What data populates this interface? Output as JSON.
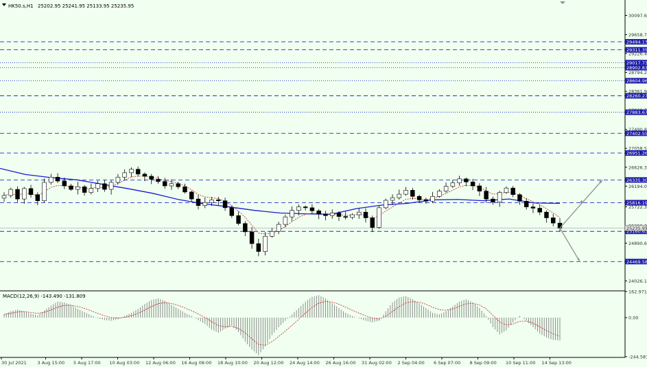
{
  "header": {
    "symbol": "HK50.s,H1",
    "ohlc": "25202.95 25241.95 25133.95 25235.95",
    "macd_label": "MACD(12,26,9) -143.490 -131.809"
  },
  "colors": {
    "background": "#f0fff0",
    "level_line": "#1e2fc8",
    "level_label_bg": "#1a1aa8",
    "ma_line": "#1a1ad2",
    "signal_line": "#c02020",
    "candle": "#000000",
    "arrow": "#909090",
    "grid": "#b8c8d0"
  },
  "chart_data": [
    {
      "type": "candlestick",
      "price_axis": {
        "ylim": [
          23800,
          30450
        ],
        "ticks": [
          30097.6,
          29658.7,
          29226.45,
          28794.2,
          28361.95,
          27929.7,
          27490.8,
          27058.55,
          26626.3,
          26194.05,
          25722.3,
          25290.05,
          24890.65,
          24458.4,
          24026.15
        ]
      },
      "x_tick_labels": [
        "30 Jul 2021",
        "3 Aug 15:00",
        "5 Aug 17:00",
        "10 Aug 03:00",
        "12 Aug 06:00",
        "16 Aug 08:00",
        "18 Aug 10:00",
        "20 Aug 12:00",
        "24 Aug 14:00",
        "26 Aug 16:00",
        "31 Aug 02:00",
        "2 Sep 04:00",
        "6 Sep 07:00",
        "8 Sep 09:00",
        "10 Sep 11:00",
        "14 Sep 13:00"
      ],
      "levels": [
        {
          "value": 29494.13,
          "style": "dashed"
        },
        {
          "value": 29311.35,
          "style": "dashed"
        },
        {
          "value": 29017.73,
          "style": "dotted"
        },
        {
          "value": 28902.83,
          "style": "dotted"
        },
        {
          "value": 28604.96,
          "style": "dotted"
        },
        {
          "value": 28260.27,
          "style": "dashed"
        },
        {
          "value": 27883.67,
          "style": "dotted"
        },
        {
          "value": 27402.55,
          "style": "dashed"
        },
        {
          "value": 26951.26,
          "style": "dashed"
        },
        {
          "value": 26335.3,
          "style": "dashed"
        },
        {
          "value": 25816.19,
          "style": "dashed"
        },
        {
          "value": 25160.63,
          "style": "dashed"
        },
        {
          "value": 24469.58,
          "style": "dashed"
        }
      ],
      "current_price": 25235.95,
      "close_series": [
        25980,
        26120,
        25900,
        26140,
        26000,
        25860,
        26280,
        26400,
        26310,
        26200,
        26120,
        26180,
        26050,
        26140,
        26250,
        26120,
        26280,
        26400,
        26500,
        26580,
        26470,
        26420,
        26350,
        26300,
        26200,
        26250,
        26180,
        26060,
        25900,
        25750,
        25820,
        25880,
        25860,
        25700,
        25520,
        25340,
        25150,
        24880,
        24700,
        25050,
        25160,
        25320,
        25490,
        25640,
        25720,
        25700,
        25630,
        25560,
        25520,
        25580,
        25500,
        25480,
        25540,
        25600,
        25470,
        25250,
        25700,
        25870,
        25930,
        26010,
        26100,
        25960,
        25880,
        25850,
        25960,
        26080,
        26190,
        26270,
        26360,
        26290,
        26200,
        26080,
        25900,
        25830,
        26050,
        26150,
        26000,
        25850,
        25720,
        25690,
        25600,
        25470,
        25350,
        25236
      ],
      "ma_series": [
        26600,
        26460,
        26390,
        26340,
        26240,
        26140,
        26030,
        25890,
        25790,
        25720,
        25640,
        25580,
        25560,
        25550,
        25680,
        25760,
        25800,
        25880,
        25890,
        25860,
        25900,
        25810,
        25800
      ]
    },
    {
      "type": "macd",
      "params": "12,26,9",
      "macd": -143.49,
      "signal": -131.809,
      "ylim": [
        -244.581,
        162.971
      ],
      "ticks": [
        162.971,
        0.0,
        -244.581
      ],
      "histogram": [
        20,
        40,
        50,
        40,
        25,
        15,
        45,
        75,
        100,
        95,
        80,
        55,
        35,
        15,
        -5,
        -15,
        -20,
        -10,
        10,
        30,
        55,
        85,
        110,
        120,
        105,
        80,
        55,
        30,
        10,
        -15,
        -40,
        -75,
        -95,
        -70,
        -50,
        -90,
        -150,
        -200,
        -235,
        -180,
        -110,
        -60,
        -20,
        20,
        60,
        100,
        130,
        140,
        120,
        90,
        60,
        30,
        10,
        -5,
        -20,
        -30,
        -20,
        40,
        95,
        125,
        135,
        115,
        90,
        60,
        30,
        20,
        40,
        70,
        100,
        115,
        95,
        60,
        10,
        -60,
        -105,
        -80,
        -30,
        10,
        -20,
        -60,
        -100,
        -125,
        -140,
        -143
      ]
    }
  ]
}
